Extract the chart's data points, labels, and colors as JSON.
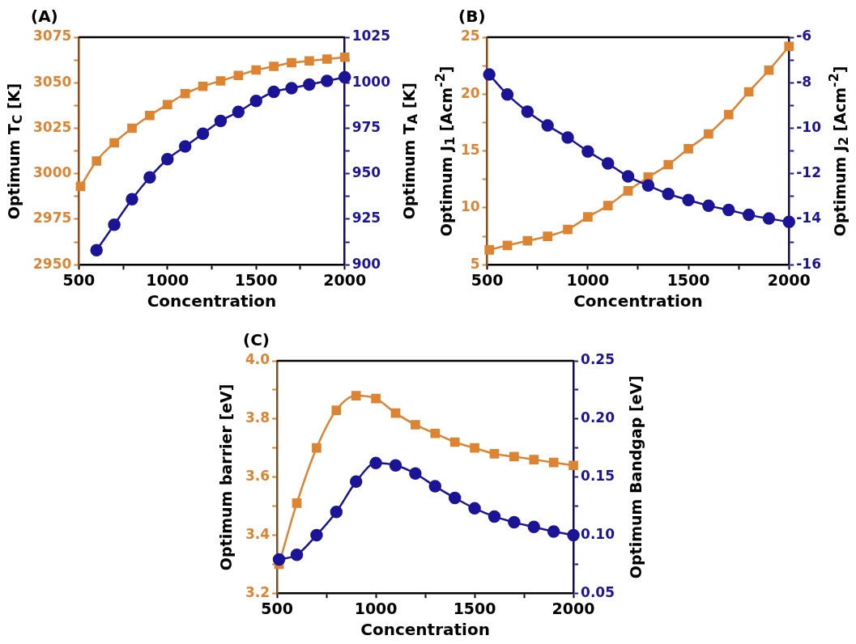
{
  "chart_data": [
    {
      "type": "line",
      "title": "(A)",
      "xlabel": "Concentration",
      "ylabel": "Optimum T$_{C}$ [K]",
      "y2label": "Optimum T$_{A}$ [K]",
      "x": [
        510,
        600,
        700,
        800,
        900,
        1000,
        1100,
        1200,
        1300,
        1400,
        1500,
        1600,
        1700,
        1800,
        1900,
        2000
      ],
      "xlim": [
        500,
        2000
      ],
      "xticks": [
        500,
        {
          "value": 750,
          "label": null
        },
        1000,
        {
          "value": 1250,
          "label": null
        },
        1500,
        {
          "value": 1750,
          "label": null
        },
        2000
      ],
      "ylim": [
        2950,
        3075
      ],
      "yticks": [
        2950,
        {
          "value": 2962.5,
          "label": null
        },
        2975,
        {
          "value": 2987.5,
          "label": null
        },
        3000,
        {
          "value": 3012.5,
          "label": null
        },
        3025,
        {
          "value": 3037.5,
          "label": null
        },
        3050,
        {
          "value": 3062.5,
          "label": null
        },
        3075
      ],
      "y2lim": [
        900,
        1025
      ],
      "y2ticks": [
        900,
        {
          "value": 912.5,
          "label": null
        },
        925,
        {
          "value": 937.5,
          "label": null
        },
        950,
        {
          "value": 962.5,
          "label": null
        },
        975,
        {
          "value": 987.5,
          "label": null
        },
        1000,
        {
          "value": 1012.5,
          "label": null
        },
        1025
      ],
      "series": [
        {
          "color": "#dd8433",
          "marker": "square",
          "values": [
            2993,
            3007,
            3017,
            3025,
            3032,
            3038,
            3044,
            3048,
            3051,
            3054,
            3057,
            3059,
            3061,
            3062,
            3063,
            3064
          ]
        },
        {
          "color": "#1c1496",
          "marker": "circle",
          "axis": "y2",
          "values": [
            null,
            908,
            922,
            936,
            948,
            958,
            965,
            972,
            979,
            984,
            990,
            995,
            997,
            999,
            1001,
            1003
          ]
        }
      ]
    },
    {
      "type": "line",
      "title": "(B)",
      "xlabel": "Concentration",
      "ylabel": "Optimum J$_{1}$ [Acm$^{-2}$]",
      "y2label": "Optimum J$_{2}$ [Acm$^{-2}$]",
      "x": [
        510,
        600,
        700,
        800,
        900,
        1000,
        1100,
        1200,
        1300,
        1400,
        1500,
        1600,
        1700,
        1800,
        1900,
        2000
      ],
      "xlim": [
        500,
        2000
      ],
      "xticks": [
        500,
        {
          "value": 750,
          "label": null
        },
        1000,
        {
          "value": 1250,
          "label": null
        },
        1500,
        {
          "value": 1750,
          "label": null
        },
        2000
      ],
      "ylim": [
        5,
        25
      ],
      "yticks": [
        5,
        {
          "value": 7.5,
          "label": null
        },
        10,
        {
          "value": 12.5,
          "label": null
        },
        15,
        {
          "value": 17.5,
          "label": null
        },
        20,
        {
          "value": 22.5,
          "label": null
        },
        25
      ],
      "y2lim": [
        -16,
        -6
      ],
      "y2ticks": [
        -16,
        {
          "value": -15,
          "label": null
        },
        -14,
        {
          "value": -13,
          "label": null
        },
        -12,
        {
          "value": -11,
          "label": null
        },
        -10,
        {
          "value": -9,
          "label": null
        },
        -8,
        {
          "value": -7,
          "label": null
        },
        -6
      ],
      "series": [
        {
          "color": "#dd8433",
          "marker": "square",
          "values": [
            6.3,
            6.7,
            7.1,
            7.5,
            8.1,
            9.2,
            10.2,
            11.5,
            12.7,
            13.8,
            15.2,
            16.5,
            18.2,
            20.2,
            22.1,
            24.2
          ]
        },
        {
          "color": "#1c1496",
          "marker": "circle",
          "axis": "y2",
          "values": [
            -7.64,
            -8.52,
            -9.27,
            -9.88,
            -10.41,
            -11.02,
            -11.55,
            -12.12,
            -12.52,
            -12.89,
            -13.16,
            -13.41,
            -13.59,
            -13.81,
            -13.97,
            -14.12
          ]
        }
      ]
    },
    {
      "type": "line",
      "title": "(C)",
      "xlabel": "Concentration",
      "ylabel": "Optimum barrier [eV]",
      "y2label": "Optimum Bandgap [eV]",
      "x": [
        510,
        600,
        700,
        800,
        900,
        1000,
        1100,
        1200,
        1300,
        1400,
        1500,
        1600,
        1700,
        1800,
        1900,
        2000
      ],
      "xlim": [
        500,
        2000
      ],
      "xticks": [
        500,
        {
          "value": 750,
          "label": null
        },
        1000,
        {
          "value": 1250,
          "label": null
        },
        1500,
        {
          "value": 1750,
          "label": null
        },
        2000
      ],
      "ylim": [
        3.2,
        4.0
      ],
      "yticks": [
        {
          "value": 3.2,
          "label": "3.2"
        },
        {
          "value": 3.3,
          "label": null
        },
        {
          "value": 3.4,
          "label": "3.4"
        },
        {
          "value": 3.5,
          "label": null
        },
        {
          "value": 3.6,
          "label": "3.6"
        },
        {
          "value": 3.7,
          "label": null
        },
        {
          "value": 3.8,
          "label": "3.8"
        },
        {
          "value": 3.9,
          "label": null
        },
        {
          "value": 4.0,
          "label": "4.0"
        }
      ],
      "y2lim": [
        0.05,
        0.25
      ],
      "y2ticks": [
        {
          "value": 0.05,
          "label": "0.05"
        },
        {
          "value": 0.075,
          "label": null
        },
        {
          "value": 0.1,
          "label": "0.10"
        },
        {
          "value": 0.125,
          "label": null
        },
        {
          "value": 0.15,
          "label": "0.15"
        },
        {
          "value": 0.175,
          "label": null
        },
        {
          "value": 0.2,
          "label": "0.20"
        },
        {
          "value": 0.225,
          "label": null
        },
        {
          "value": 0.25,
          "label": "0.25"
        }
      ],
      "series": [
        {
          "color": "#dd8433",
          "marker": "square",
          "values": [
            3.3,
            3.51,
            3.7,
            3.83,
            3.88,
            3.87,
            3.82,
            3.78,
            3.75,
            3.72,
            3.7,
            3.68,
            3.67,
            3.66,
            3.65,
            3.64
          ]
        },
        {
          "color": "#1c1496",
          "marker": "circle",
          "axis": "y2",
          "values": [
            0.079,
            0.083,
            0.1,
            0.12,
            0.146,
            0.162,
            0.16,
            0.153,
            0.142,
            0.132,
            0.123,
            0.116,
            0.111,
            0.107,
            0.103,
            0.1
          ]
        }
      ]
    }
  ]
}
